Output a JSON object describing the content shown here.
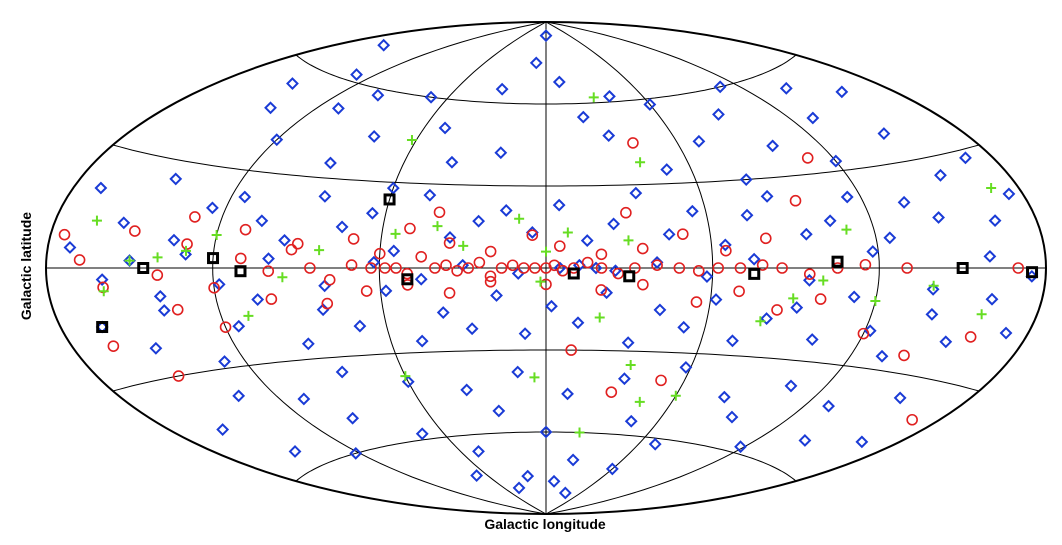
{
  "chart_data": {
    "type": "scatter",
    "projection": "aitoff",
    "title": "",
    "xlabel": "Galactic longitude",
    "ylabel": "Galactic latitude",
    "xlim": [
      -180,
      180
    ],
    "ylim": [
      -90,
      90
    ],
    "grid": {
      "meridians_deg": [
        -120,
        -60,
        0,
        60,
        120
      ],
      "parallels_deg": [
        -60,
        -30,
        0,
        30,
        60
      ]
    },
    "legend": "none",
    "series": [
      {
        "marker": "diamond",
        "color": "#1a3bd6",
        "points": [
          [
            -160,
            70
          ],
          [
            -150,
            55
          ],
          [
            -140,
            48
          ],
          [
            -130,
            62
          ],
          [
            -120,
            40
          ],
          [
            -110,
            52
          ],
          [
            -100,
            58
          ],
          [
            -90,
            35
          ],
          [
            -80,
            45
          ],
          [
            -70,
            60
          ],
          [
            -60,
            28
          ],
          [
            -50,
            50
          ],
          [
            -40,
            38
          ],
          [
            -30,
            65
          ],
          [
            -20,
            42
          ],
          [
            -10,
            75
          ],
          [
            0,
            85
          ],
          [
            10,
            68
          ],
          [
            20,
            55
          ],
          [
            30,
            48
          ],
          [
            40,
            62
          ],
          [
            50,
            35
          ],
          [
            60,
            58
          ],
          [
            70,
            44
          ],
          [
            80,
            30
          ],
          [
            90,
            52
          ],
          [
            100,
            40
          ],
          [
            110,
            60
          ],
          [
            120,
            33
          ],
          [
            130,
            46
          ],
          [
            140,
            55
          ],
          [
            150,
            38
          ],
          [
            160,
            50
          ],
          [
            170,
            28
          ],
          [
            -170,
            20
          ],
          [
            -155,
            12
          ],
          [
            -145,
            25
          ],
          [
            -135,
            8
          ],
          [
            -125,
            18
          ],
          [
            -115,
            22
          ],
          [
            -105,
            15
          ],
          [
            -95,
            9
          ],
          [
            -85,
            24
          ],
          [
            -75,
            14
          ],
          [
            -65,
            19
          ],
          [
            -55,
            6
          ],
          [
            -45,
            26
          ],
          [
            -35,
            11
          ],
          [
            -25,
            17
          ],
          [
            -15,
            21
          ],
          [
            -5,
            13
          ],
          [
            5,
            23
          ],
          [
            15,
            10
          ],
          [
            25,
            16
          ],
          [
            35,
            27
          ],
          [
            45,
            12
          ],
          [
            55,
            20
          ],
          [
            65,
            8
          ],
          [
            75,
            18
          ],
          [
            85,
            24
          ],
          [
            95,
            11
          ],
          [
            105,
            15
          ],
          [
            115,
            22
          ],
          [
            125,
            9
          ],
          [
            135,
            19
          ],
          [
            145,
            14
          ],
          [
            155,
            25
          ],
          [
            165,
            12
          ],
          [
            175,
            18
          ],
          [
            -172,
            5
          ],
          [
            -160,
            -3
          ],
          [
            -150,
            2
          ],
          [
            -140,
            -8
          ],
          [
            -130,
            4
          ],
          [
            -118,
            -5
          ],
          [
            -100,
            3
          ],
          [
            -80,
            -6
          ],
          [
            -62,
            2
          ],
          [
            -45,
            -4
          ],
          [
            -30,
            1
          ],
          [
            -10,
            -2
          ],
          [
            5,
            0
          ],
          [
            12,
            1
          ],
          [
            18,
            0
          ],
          [
            25,
            -1
          ],
          [
            40,
            2
          ],
          [
            58,
            -3
          ],
          [
            75,
            3
          ],
          [
            95,
            -4
          ],
          [
            118,
            5
          ],
          [
            140,
            -6
          ],
          [
            160,
            3
          ],
          [
            175,
            -2
          ],
          [
            -165,
            -15
          ],
          [
            -150,
            -22
          ],
          [
            -140,
            -12
          ],
          [
            -128,
            -28
          ],
          [
            -115,
            -18
          ],
          [
            -105,
            -10
          ],
          [
            -92,
            -25
          ],
          [
            -82,
            -14
          ],
          [
            -70,
            -20
          ],
          [
            -58,
            -8
          ],
          [
            -48,
            -26
          ],
          [
            -38,
            -16
          ],
          [
            -28,
            -22
          ],
          [
            -18,
            -10
          ],
          [
            -8,
            -24
          ],
          [
            2,
            -14
          ],
          [
            12,
            -20
          ],
          [
            22,
            -9
          ],
          [
            32,
            -27
          ],
          [
            42,
            -15
          ],
          [
            52,
            -21
          ],
          [
            62,
            -11
          ],
          [
            72,
            -25
          ],
          [
            82,
            -17
          ],
          [
            92,
            -13
          ],
          [
            102,
            -23
          ],
          [
            112,
            -9
          ],
          [
            122,
            -19
          ],
          [
            132,
            -26
          ],
          [
            142,
            -13
          ],
          [
            152,
            -20
          ],
          [
            162,
            -8
          ],
          [
            172,
            -16
          ],
          [
            -160,
            -45
          ],
          [
            -148,
            -55
          ],
          [
            -135,
            -38
          ],
          [
            -122,
            -60
          ],
          [
            -110,
            -42
          ],
          [
            -98,
            -50
          ],
          [
            -85,
            -35
          ],
          [
            -72,
            -58
          ],
          [
            -60,
            -40
          ],
          [
            -48,
            -66
          ],
          [
            -36,
            -44
          ],
          [
            -24,
            -52
          ],
          [
            -12,
            -38
          ],
          [
            0,
            -60
          ],
          [
            10,
            -46
          ],
          [
            22,
            -70
          ],
          [
            34,
            -40
          ],
          [
            46,
            -55
          ],
          [
            58,
            -35
          ],
          [
            70,
            -62
          ],
          [
            82,
            -44
          ],
          [
            94,
            -50
          ],
          [
            106,
            -38
          ],
          [
            118,
            -58
          ],
          [
            130,
            -42
          ],
          [
            142,
            -52
          ],
          [
            154,
            -36
          ],
          [
            166,
            -48
          ],
          [
            -40,
            -80
          ],
          [
            -20,
            -76
          ],
          [
            10,
            -78
          ],
          [
            35,
            -82
          ],
          [
            60,
            -72
          ],
          [
            -70,
            -74
          ]
        ]
      },
      {
        "marker": "circle",
        "color": "#e02020",
        "points": [
          [
            -175,
            8
          ],
          [
            -168,
            2
          ],
          [
            -160,
            -5
          ],
          [
            -150,
            10
          ],
          [
            -140,
            -2
          ],
          [
            -130,
            7
          ],
          [
            -120,
            -6
          ],
          [
            -110,
            3
          ],
          [
            -100,
            -1
          ],
          [
            -92,
            6
          ],
          [
            -85,
            0
          ],
          [
            -78,
            -4
          ],
          [
            -70,
            1
          ],
          [
            -63,
            0
          ],
          [
            -58,
            0
          ],
          [
            -54,
            0
          ],
          [
            -50,
            -2
          ],
          [
            -45,
            4
          ],
          [
            -40,
            0
          ],
          [
            -36,
            1
          ],
          [
            -32,
            -1
          ],
          [
            -28,
            0
          ],
          [
            -24,
            2
          ],
          [
            -20,
            -3
          ],
          [
            -16,
            0
          ],
          [
            -12,
            1
          ],
          [
            -8,
            0
          ],
          [
            -4,
            0
          ],
          [
            0,
            0
          ],
          [
            3,
            1
          ],
          [
            6,
            -1
          ],
          [
            10,
            0
          ],
          [
            15,
            2
          ],
          [
            20,
            0
          ],
          [
            26,
            -2
          ],
          [
            32,
            0
          ],
          [
            40,
            1
          ],
          [
            48,
            0
          ],
          [
            55,
            -1
          ],
          [
            62,
            0
          ],
          [
            70,
            0
          ],
          [
            78,
            1
          ],
          [
            85,
            0
          ],
          [
            95,
            -2
          ],
          [
            105,
            0
          ],
          [
            115,
            1
          ],
          [
            130,
            0
          ],
          [
            150,
            0
          ],
          [
            170,
            0
          ],
          [
            -165,
            -20
          ],
          [
            -150,
            -30
          ],
          [
            -135,
            -12
          ],
          [
            -120,
            -18
          ],
          [
            -100,
            -10
          ],
          [
            -80,
            -12
          ],
          [
            -65,
            -8
          ],
          [
            -50,
            -6
          ],
          [
            -35,
            -9
          ],
          [
            -20,
            -5
          ],
          [
            0,
            -6
          ],
          [
            20,
            -8
          ],
          [
            35,
            -6
          ],
          [
            55,
            -12
          ],
          [
            70,
            -8
          ],
          [
            85,
            -14
          ],
          [
            100,
            -10
          ],
          [
            120,
            -20
          ],
          [
            140,
            -25
          ],
          [
            160,
            -18
          ],
          [
            170,
            -40
          ],
          [
            -130,
            15
          ],
          [
            -110,
            12
          ],
          [
            -90,
            8
          ],
          [
            -70,
            10
          ],
          [
            -50,
            14
          ],
          [
            -35,
            9
          ],
          [
            -20,
            6
          ],
          [
            -5,
            12
          ],
          [
            5,
            8
          ],
          [
            20,
            5
          ],
          [
            35,
            7
          ],
          [
            50,
            12
          ],
          [
            65,
            6
          ],
          [
            80,
            10
          ],
          [
            95,
            22
          ],
          [
            110,
            35
          ],
          [
            40,
            45
          ],
          [
            30,
            20
          ],
          [
            -40,
            20
          ],
          [
            -60,
            5
          ],
          [
            10,
            -30
          ],
          [
            30,
            -45
          ],
          [
            50,
            -40
          ]
        ]
      },
      {
        "marker": "plus",
        "color": "#66dd22",
        "points": [
          [
            -165,
            12
          ],
          [
            -160,
            -6
          ],
          [
            -150,
            2
          ],
          [
            -140,
            3
          ],
          [
            -130,
            5
          ],
          [
            -120,
            10
          ],
          [
            -110,
            -15
          ],
          [
            -95,
            -3
          ],
          [
            -82,
            6
          ],
          [
            -62,
            45
          ],
          [
            -55,
            12
          ],
          [
            -40,
            15
          ],
          [
            -30,
            8
          ],
          [
            -10,
            18
          ],
          [
            0,
            6
          ],
          [
            -2,
            -5
          ],
          [
            8,
            13
          ],
          [
            20,
            -18
          ],
          [
            30,
            10
          ],
          [
            35,
            -35
          ],
          [
            45,
            -48
          ],
          [
            60,
            -45
          ],
          [
            80,
            -18
          ],
          [
            90,
            -10
          ],
          [
            100,
            -4
          ],
          [
            110,
            12
          ],
          [
            120,
            -10
          ],
          [
            140,
            -5
          ],
          [
            160,
            -12
          ],
          [
            170,
            20
          ],
          [
            20,
            -60
          ],
          [
            -5,
            -40
          ],
          [
            -60,
            -38
          ],
          [
            30,
            62
          ],
          [
            40,
            38
          ]
        ]
      },
      {
        "marker": "square",
        "color": "#000000",
        "points": [
          [
            -145,
            0
          ],
          [
            -120,
            3
          ],
          [
            -110,
            -1
          ],
          [
            -60,
            24
          ],
          [
            -50,
            -4
          ],
          [
            10,
            -2
          ],
          [
            30,
            -3
          ],
          [
            75,
            -2
          ],
          [
            105,
            2
          ],
          [
            150,
            0
          ],
          [
            175,
            -1
          ],
          [
            -165,
            -15
          ]
        ]
      }
    ]
  }
}
